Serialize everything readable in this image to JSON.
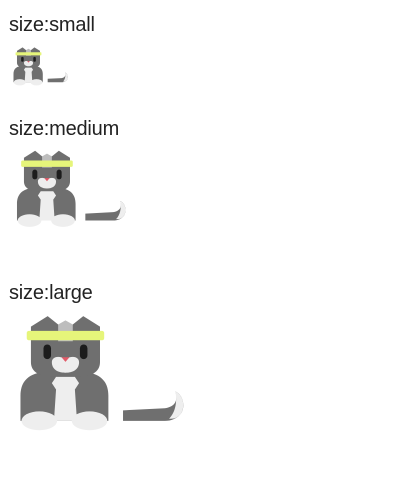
{
  "samples": [
    {
      "id": "small",
      "label": "size:small"
    },
    {
      "id": "medium",
      "label": "size:medium"
    },
    {
      "id": "large",
      "label": "size:large"
    }
  ],
  "colors": {
    "fur": "#6f6f6f",
    "fur_light": "#bdbdbd",
    "chest": "#eeeeee",
    "headband": "#e6f57a",
    "eyes": "#1c1c1c",
    "nose": "#e25a68"
  },
  "icon": "cat-with-headband-icon"
}
